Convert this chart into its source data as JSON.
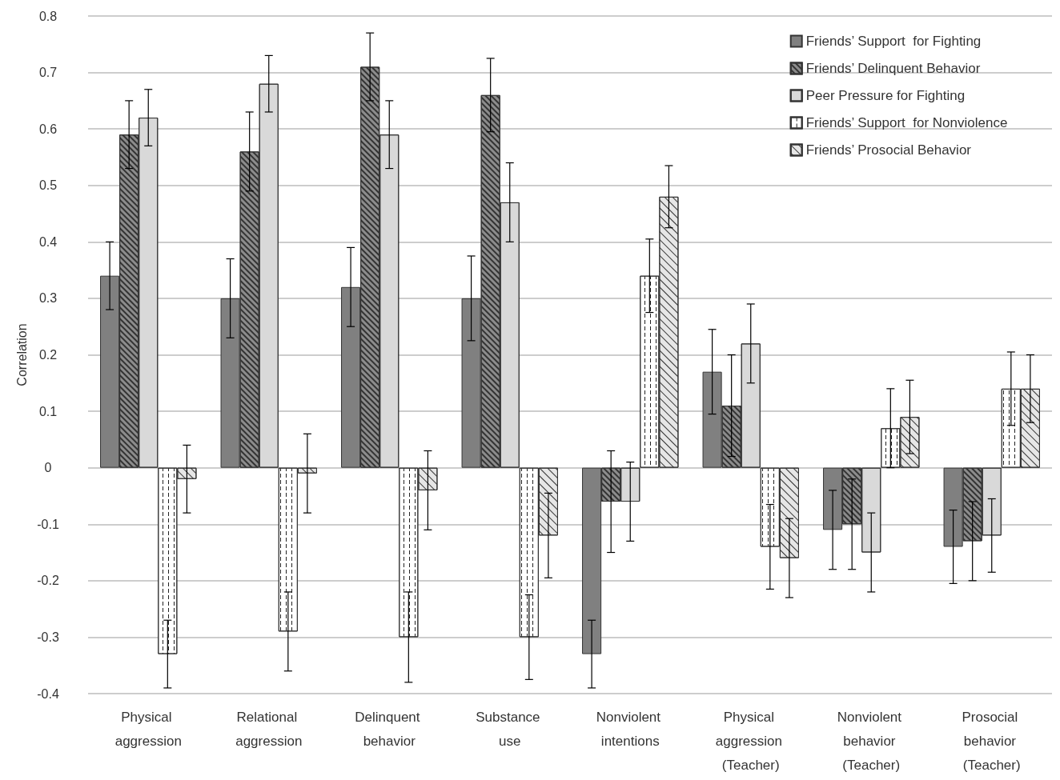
{
  "chart_data": {
    "type": "bar",
    "ylabel": "Correlation",
    "categories": [
      "Physical aggression",
      "Relational aggression",
      "Delinquent behavior",
      "Substance use",
      "Nonviolent intentions",
      "Physical aggression (Teacher)",
      "Nonviolent behavior (Teacher)",
      "Prosocial behavior (Teacher)"
    ],
    "series": [
      {
        "name": "Friends’ Support  for Fighting",
        "color": "#808080",
        "values": [
          0.34,
          0.3,
          0.32,
          0.3,
          -0.33,
          0.17,
          -0.11,
          -0.14
        ],
        "errors": [
          0.06,
          0.07,
          0.07,
          0.075,
          0.06,
          0.075,
          0.07,
          0.065
        ]
      },
      {
        "name": "Friends’ Delinquent Behavior",
        "color": "#8c8c8c",
        "values": [
          0.59,
          0.56,
          0.71,
          0.66,
          -0.06,
          0.11,
          -0.1,
          -0.13
        ],
        "errors": [
          0.06,
          0.07,
          0.06,
          0.065,
          0.09,
          0.09,
          0.08,
          0.07
        ]
      },
      {
        "name": "Peer Pressure for Fighting",
        "color": "#d9d9d9",
        "values": [
          0.62,
          0.68,
          0.59,
          0.47,
          -0.06,
          0.22,
          -0.15,
          -0.12
        ],
        "errors": [
          0.05,
          0.05,
          0.06,
          0.07,
          0.07,
          0.07,
          0.07,
          0.065
        ]
      },
      {
        "name": "Friends’ Support  for Nonviolence",
        "color": "#ffffff",
        "values": [
          -0.33,
          -0.29,
          -0.3,
          -0.3,
          0.34,
          -0.14,
          0.07,
          0.14
        ],
        "errors": [
          0.06,
          0.07,
          0.08,
          0.075,
          0.065,
          0.075,
          0.07,
          0.065
        ]
      },
      {
        "name": "Friends’ Prosocial Behavior",
        "color": "#e6e6e6",
        "values": [
          -0.02,
          -0.01,
          -0.04,
          -0.12,
          0.48,
          -0.16,
          0.09,
          0.14
        ],
        "errors": [
          0.06,
          0.07,
          0.07,
          0.075,
          0.055,
          0.07,
          0.065,
          0.06
        ]
      }
    ],
    "ylim": [
      -0.4,
      0.8
    ],
    "yticks": [
      -0.4,
      -0.3,
      -0.2,
      -0.1,
      0,
      0.1,
      0.2,
      0.3,
      0.4,
      0.5,
      0.6,
      0.7,
      0.8
    ],
    "grid": "y",
    "legend": "top right"
  }
}
